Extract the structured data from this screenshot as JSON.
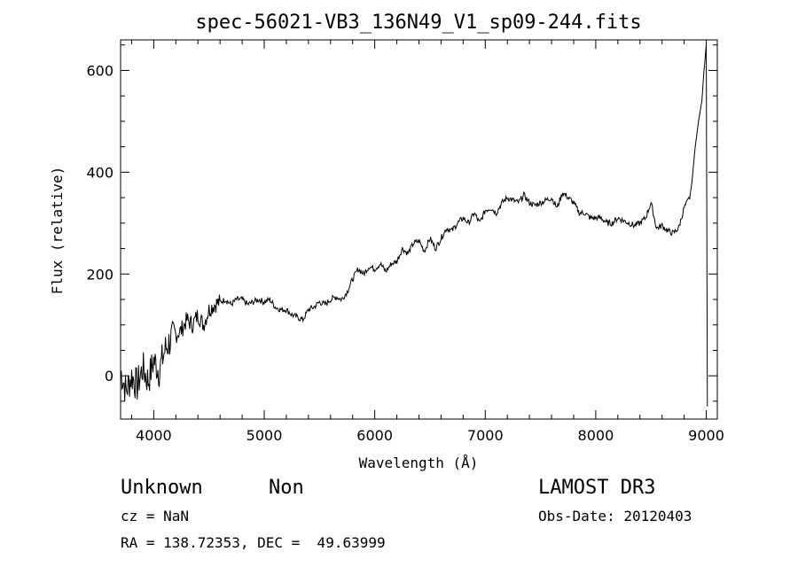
{
  "chart_data": {
    "type": "line",
    "title": "spec-56021-VB3_136N49_V1_sp09-244.fits",
    "xlabel": "Wavelength (Å)",
    "ylabel": "Flux (relative)",
    "xlim": [
      3700,
      9100
    ],
    "ylim": [
      -85,
      660
    ],
    "xticks": [
      4000,
      5000,
      6000,
      7000,
      8000,
      9000
    ],
    "yticks": [
      0,
      200,
      400,
      600
    ],
    "grid": false,
    "series": [
      {
        "x": [
          3700,
          3750,
          3800,
          3850,
          3900,
          3950,
          4000,
          4050,
          4100,
          4150,
          4200,
          4250,
          4300,
          4350,
          4400,
          4450,
          4500,
          4550,
          4600,
          4650,
          4700,
          4750,
          4800,
          4850,
          4900,
          4950,
          5000,
          5050,
          5100,
          5150,
          5200,
          5250,
          5300,
          5350,
          5400,
          5450,
          5500,
          5550,
          5600,
          5650,
          5700,
          5750,
          5800,
          5850,
          5900,
          5950,
          6000,
          6050,
          6100,
          6150,
          6200,
          6250,
          6300,
          6350,
          6400,
          6450,
          6500,
          6550,
          6600,
          6650,
          6700,
          6750,
          6800,
          6850,
          6900,
          6950,
          7000,
          7050,
          7100,
          7150,
          7200,
          7250,
          7300,
          7350,
          7400,
          7450,
          7500,
          7550,
          7600,
          7650,
          7700,
          7750,
          7800,
          7850,
          7900,
          7950,
          8000,
          8050,
          8100,
          8150,
          8200,
          8250,
          8300,
          8350,
          8400,
          8450,
          8500,
          8550,
          8600,
          8650,
          8700,
          8750,
          8800,
          8850,
          8870,
          8900,
          8930,
          8960,
          8980,
          9000,
          9010
        ],
        "y": [
          10,
          -30,
          0,
          -20,
          15,
          -10,
          30,
          10,
          50,
          70,
          80,
          90,
          110,
          100,
          120,
          100,
          130,
          140,
          145,
          150,
          140,
          150,
          150,
          140,
          145,
          150,
          145,
          150,
          135,
          130,
          130,
          120,
          115,
          110,
          130,
          135,
          145,
          140,
          150,
          155,
          150,
          165,
          190,
          210,
          200,
          215,
          210,
          220,
          205,
          220,
          225,
          250,
          240,
          260,
          265,
          245,
          270,
          250,
          270,
          290,
          285,
          300,
          310,
          300,
          320,
          300,
          325,
          330,
          320,
          340,
          350,
          345,
          340,
          355,
          340,
          335,
          340,
          345,
          350,
          330,
          360,
          350,
          340,
          320,
          320,
          310,
          310,
          310,
          300,
          300,
          310,
          305,
          300,
          295,
          300,
          310,
          340,
          290,
          295,
          285,
          280,
          290,
          330,
          350,
          380,
          450,
          500,
          540,
          600,
          650,
          -60
        ]
      }
    ]
  },
  "info": {
    "class": "Unknown",
    "subclass": "Non",
    "survey": "LAMOST DR3",
    "cz": "cz = NaN",
    "obs_date": "Obs-Date: 20120403",
    "radec": "RA = 138.72353, DEC =  49.63999"
  }
}
